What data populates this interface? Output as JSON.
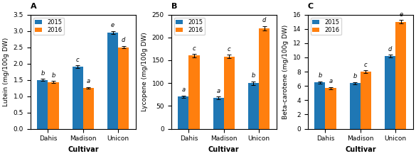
{
  "chart_data": [
    {
      "type": "bar",
      "title": "A",
      "xlabel": "Cultivar",
      "ylabel": "Lutein (mg/100g DW)",
      "categories": [
        "Dahis",
        "Madison",
        "Unicon"
      ],
      "series": [
        {
          "name": "2015",
          "values": [
            1.5,
            1.9,
            2.95
          ],
          "errors": [
            0.03,
            0.04,
            0.05
          ],
          "annotations": [
            "b",
            "c",
            "e"
          ]
        },
        {
          "name": "2016",
          "values": [
            1.43,
            1.25,
            2.5
          ],
          "errors": [
            0.03,
            0.03,
            0.04
          ],
          "annotations": [
            "b",
            "a",
            "d"
          ]
        }
      ],
      "ylim": [
        0,
        3.5
      ],
      "yticks": [
        0.0,
        0.5,
        1.0,
        1.5,
        2.0,
        2.5,
        3.0,
        3.5
      ],
      "legend": "upper left"
    },
    {
      "type": "bar",
      "title": "B",
      "xlabel": "Cultivar",
      "ylabel": "Lycopene (mg/100g DW)",
      "categories": [
        "Dahis",
        "Madison",
        "Unicon"
      ],
      "series": [
        {
          "name": "2015",
          "values": [
            70,
            68,
            100
          ],
          "errors": [
            3,
            3,
            4
          ],
          "annotations": [
            "a",
            "a",
            "b"
          ]
        },
        {
          "name": "2016",
          "values": [
            160,
            158,
            220
          ],
          "errors": [
            4,
            4,
            5
          ],
          "annotations": [
            "c",
            "c",
            "d"
          ]
        }
      ],
      "ylim": [
        0,
        250
      ],
      "yticks": [
        0,
        50,
        100,
        150,
        200,
        250
      ],
      "legend": "upper left"
    },
    {
      "type": "bar",
      "title": "C",
      "xlabel": "Cultivar",
      "ylabel": "Beta-carotene (mg/100g DW)",
      "categories": [
        "Dahis",
        "Madison",
        "Unicon"
      ],
      "series": [
        {
          "name": "2015",
          "values": [
            6.5,
            6.4,
            10.2
          ],
          "errors": [
            0.15,
            0.15,
            0.2
          ],
          "annotations": [
            "b",
            "b",
            "d"
          ]
        },
        {
          "name": "2016",
          "values": [
            5.7,
            8.0,
            15.0
          ],
          "errors": [
            0.15,
            0.18,
            0.25
          ],
          "annotations": [
            "a",
            "c",
            "e"
          ]
        }
      ],
      "ylim": [
        0,
        16
      ],
      "yticks": [
        0,
        2,
        4,
        6,
        8,
        10,
        12,
        14,
        16
      ],
      "legend": "upper left"
    }
  ]
}
